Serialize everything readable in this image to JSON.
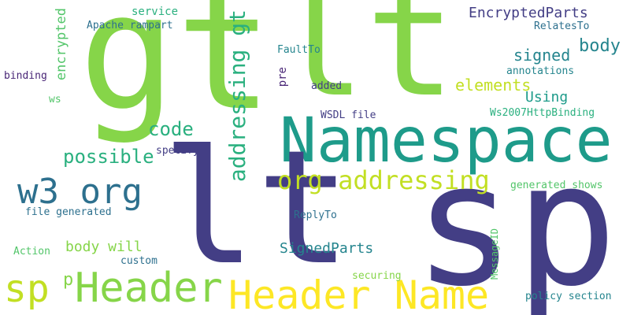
{
  "word_cloud": {
    "words": [
      {
        "text": "lt"
      },
      {
        "text": "gt"
      },
      {
        "text": "sp"
      },
      {
        "text": "Namespace"
      },
      {
        "text": "lt"
      },
      {
        "text": "Header"
      },
      {
        "text": "Header Name"
      },
      {
        "text": "w3 org"
      },
      {
        "text": "addressing gt"
      },
      {
        "text": "org addressing"
      },
      {
        "text": "sp"
      },
      {
        "text": "EncryptedParts"
      },
      {
        "text": "body"
      },
      {
        "text": "signed"
      },
      {
        "text": "elements"
      },
      {
        "text": "Using"
      },
      {
        "text": "code"
      },
      {
        "text": "possible"
      },
      {
        "text": "body will"
      },
      {
        "text": "SignedParts"
      },
      {
        "text": "encrypted"
      },
      {
        "text": "service"
      },
      {
        "text": "Apache rampart"
      },
      {
        "text": "RelatesTo"
      },
      {
        "text": "annotations"
      },
      {
        "text": "FaultTo"
      },
      {
        "text": "pre"
      },
      {
        "text": "added"
      },
      {
        "text": "binding"
      },
      {
        "text": "ws"
      },
      {
        "text": "WSDL file"
      },
      {
        "text": "Ws2007HttpBinding"
      },
      {
        "text": "specify"
      },
      {
        "text": "generated shows"
      },
      {
        "text": "file generated"
      },
      {
        "text": "ReplyTo"
      },
      {
        "text": "Action"
      },
      {
        "text": "custom"
      },
      {
        "text": "MessageID"
      },
      {
        "text": "securing"
      },
      {
        "text": "policy section"
      },
      {
        "text": "p"
      }
    ]
  }
}
